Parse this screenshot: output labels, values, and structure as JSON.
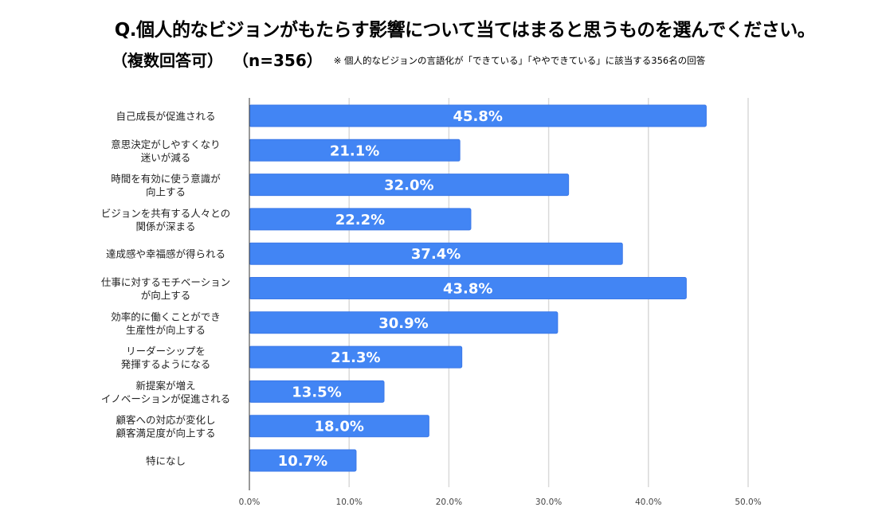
{
  "header": {
    "title": "Q.個人的なビジョンがもたらす影響について当てはまると思うものを選んでください。",
    "subtitle": "（複数回答可）",
    "sample_size": "（n=356）",
    "note": "※ 個人的なビジョンの言語化が「できている」「ややできている」に該当する356名の回答"
  },
  "colors": {
    "bar": "#4285F4",
    "bar_border": "#3B78E7",
    "grid": "#d9d9d9",
    "axis": "#333333"
  },
  "chart_data": {
    "type": "bar",
    "orientation": "horizontal",
    "title": "Q.個人的なビジョンがもたらす影響について当てはまると思うものを選んでください。",
    "xlabel": "",
    "ylabel": "",
    "xlim": [
      0,
      50
    ],
    "grid": true,
    "legend": "none",
    "ticks": [
      "0.0%",
      "10.0%",
      "20.0%",
      "30.0%",
      "40.0%",
      "50.0%"
    ],
    "tick_values": [
      0,
      10,
      20,
      30,
      40,
      50
    ],
    "categories": [
      [
        "自己成長が促進される"
      ],
      [
        "意思決定がしやすくなり",
        "迷いが減る"
      ],
      [
        "時間を有効に使う意識が",
        "向上する"
      ],
      [
        "ビジョンを共有する人々との",
        "関係が深まる"
      ],
      [
        "達成感や幸福感が得られる"
      ],
      [
        "仕事に対するモチベーション",
        "が向上する"
      ],
      [
        "効率的に働くことができ",
        "生産性が向上する"
      ],
      [
        "リーダーシップを",
        "発揮するようになる"
      ],
      [
        "新提案が増え",
        "イノベーションが促進される"
      ],
      [
        "顧客への対応が変化し",
        "顧客満足度が向上する"
      ],
      [
        "特になし"
      ]
    ],
    "values": [
      45.8,
      21.1,
      32.0,
      22.2,
      37.4,
      43.8,
      30.9,
      21.3,
      13.5,
      18.0,
      10.7
    ],
    "data_labels": [
      "45.8%",
      "21.1%",
      "32.0%",
      "22.2%",
      "37.4%",
      "43.8%",
      "30.9%",
      "21.3%",
      "13.5%",
      "18.0%",
      "10.7%"
    ]
  }
}
